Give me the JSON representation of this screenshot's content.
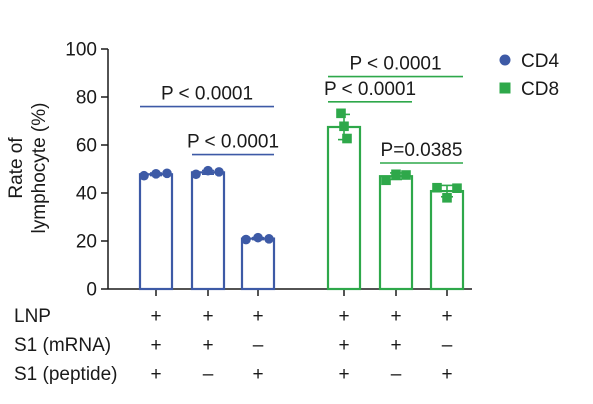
{
  "chart_data": {
    "type": "bar",
    "ylabel": "Rate of lymphocyte (%)",
    "ylabel_lines": [
      "Rate of",
      "lymphocyte (%)"
    ],
    "ylim": [
      0,
      100
    ],
    "yticks": [
      "0",
      "20",
      "40",
      "60",
      "80",
      "100"
    ],
    "legend_position": "top-right",
    "series": [
      {
        "name": "CD4",
        "color": "#3d5aa6",
        "marker": "circle",
        "groups": [
          {
            "mean": 47.8,
            "points": [
              47.2,
              48.0,
              48.2
            ]
          },
          {
            "mean": 48.6,
            "points": [
              47.8,
              49.3,
              48.8
            ]
          },
          {
            "mean": 21.0,
            "points": [
              20.6,
              21.4,
              20.9
            ]
          }
        ]
      },
      {
        "name": "CD8",
        "color": "#2ea84a",
        "marker": "square",
        "groups": [
          {
            "mean": 67.5,
            "points": [
              73.2,
              67.8,
              62.7
            ]
          },
          {
            "mean": 47.0,
            "points": [
              45.3,
              47.8,
              47.5
            ]
          },
          {
            "mean": 40.8,
            "points": [
              42.2,
              38.0,
              42.0
            ]
          }
        ]
      }
    ],
    "conditions": {
      "labels": [
        "LNP",
        "S1 (mRNA)",
        "S1 (peptide)"
      ],
      "values": [
        [
          "+",
          "+",
          "+",
          "+",
          "+",
          "+"
        ],
        [
          "+",
          "+",
          "–",
          "+",
          "+",
          "–"
        ],
        [
          "+",
          "–",
          "+",
          "+",
          "–",
          "+"
        ]
      ]
    },
    "annotations": [
      {
        "text": "P < 0.0001",
        "color": "#3d5aa6",
        "from": 0,
        "to": 2,
        "level": 76
      },
      {
        "text": "P < 0.0001",
        "color": "#3d5aa6",
        "from": 1,
        "to": 2,
        "level": 56
      },
      {
        "text": "P < 0.0001",
        "color": "#2ea84a",
        "from": 3,
        "to": 5,
        "level": 88.5
      },
      {
        "text": "P < 0.0001",
        "color": "#2ea84a",
        "from": 3,
        "to": 4,
        "level": 78
      },
      {
        "text": "P=0.0385",
        "color": "#2ea84a",
        "from": 4,
        "to": 5,
        "level": 52.5
      }
    ]
  }
}
